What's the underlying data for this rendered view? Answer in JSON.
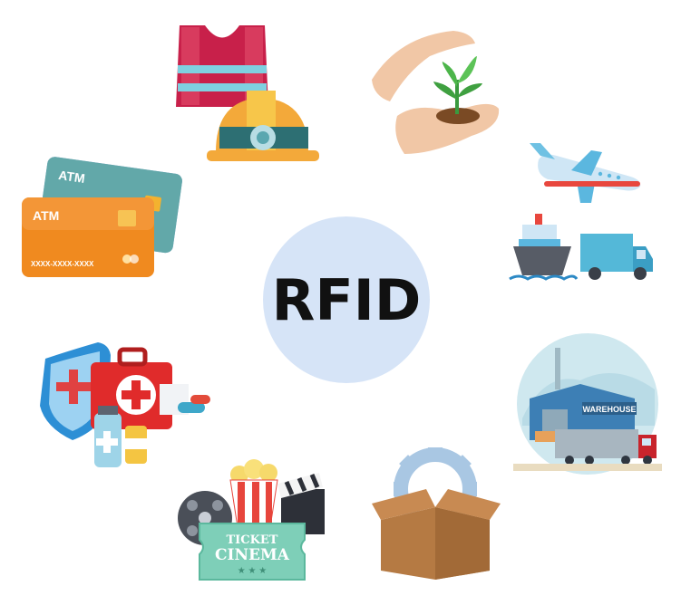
{
  "hub": {
    "label": "RFID",
    "fill": "#d6e4f7"
  },
  "spokes": {
    "safety": {
      "icon": "safety-vest-hardhat-icon"
    },
    "agriculture": {
      "icon": "hands-plant-icon"
    },
    "transport": {
      "icon": "plane-ship-truck-icon"
    },
    "warehouse": {
      "icon": "warehouse-icon",
      "sign": "WAREHOUSE"
    },
    "manufacturing": {
      "icon": "box-gear-icon"
    },
    "entertainment": {
      "icon": "cinema-ticket-icon",
      "ticket_top": "TICKET",
      "ticket_main": "CINEMA"
    },
    "healthcare": {
      "icon": "medical-kit-icon"
    },
    "payments": {
      "icon": "atm-cards-icon",
      "card_front_label": "ATM",
      "card_back_label": "ATM",
      "card_number": "XXXX-XXXX-XXXX"
    }
  }
}
